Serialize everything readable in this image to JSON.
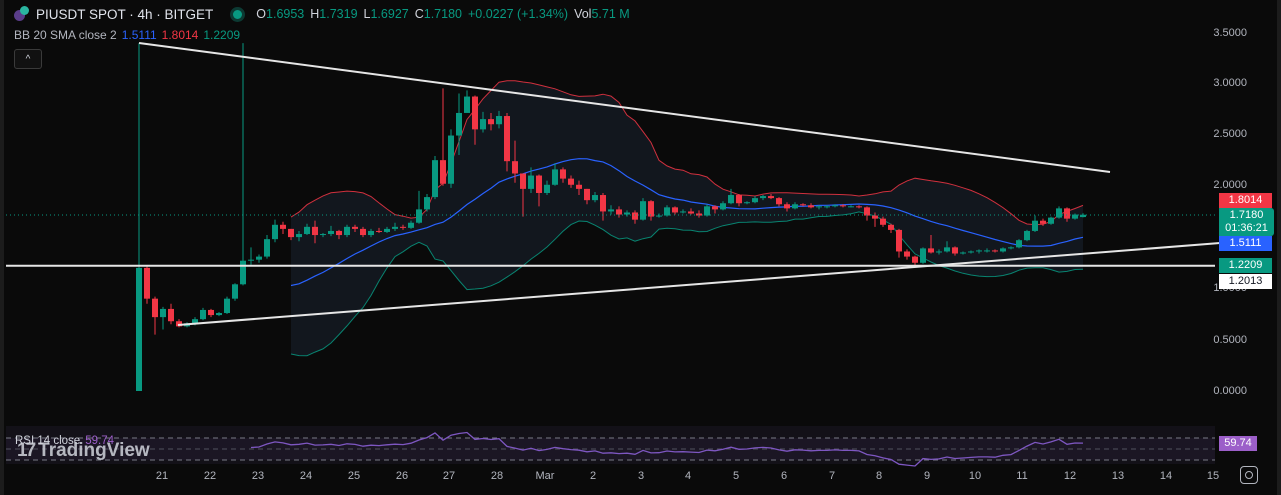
{
  "header": {
    "symbol": "PIUSDT SPOT",
    "interval": "4h",
    "exchange": "BITGET",
    "title": "PIUSDT SPOT · 4h · BITGET",
    "ohlc": {
      "o_label": "O",
      "o": "1.6953",
      "h_label": "H",
      "h": "1.7319",
      "l_label": "L",
      "l": "1.6927",
      "c_label": "C",
      "c": "1.7180",
      "change": "+0.0227 (+1.34%)",
      "vol_label": "Vol",
      "vol": "5.71 M"
    }
  },
  "indicators": {
    "bb": {
      "label": "BB 20 SMA close 2",
      "basis": "1.5111",
      "upper": "1.8014",
      "lower": "1.2209"
    },
    "rsi": {
      "label": "RSI 14 close",
      "value": "59.74"
    }
  },
  "watermark": {
    "mark": "17",
    "word": "TradingView"
  },
  "collapse_icon": "^",
  "price_axis": {
    "ticks": [
      "3.5000",
      "3.0000",
      "2.5000",
      "2.0000",
      "1.0000",
      "0.5000",
      "0.0000"
    ],
    "tags": {
      "bb_upper": "1.8014",
      "last_price": "1.7180",
      "countdown": "01:36:21",
      "bb_basis": "1.5111",
      "bb_lower": "1.2209",
      "horizontal_line": "1.2013",
      "rsi": "59.74"
    }
  },
  "time_axis": {
    "labels": [
      "21",
      "22",
      "23",
      "24",
      "25",
      "26",
      "27",
      "28",
      "Mar",
      "2",
      "3",
      "4",
      "5",
      "6",
      "7",
      "8",
      "9",
      "10",
      "11",
      "12",
      "13",
      "14",
      "15"
    ]
  },
  "colors": {
    "up": "#089981",
    "down": "#f23645",
    "bb_basis": "#2962ff",
    "bb_upper": "#f23645",
    "bb_lower": "#089981",
    "rsi": "#7e57c2",
    "rsi_tag": "#9c5fc9",
    "background": "#000000"
  },
  "chart_data": {
    "type": "candlestick",
    "title": "PIUSDT SPOT · 4h · BITGET",
    "x_labels": [
      "21",
      "22",
      "23",
      "24",
      "25",
      "26",
      "27",
      "28",
      "Mar",
      "2",
      "3",
      "4",
      "5",
      "6",
      "7",
      "8",
      "9",
      "10",
      "11",
      "12",
      "13",
      "14",
      "15"
    ],
    "ylim": [
      0,
      3.6
    ],
    "candles_ohlc": [
      [
        0.0,
        3.39,
        0.0,
        1.2
      ],
      [
        1.2,
        1.22,
        0.85,
        0.9
      ],
      [
        0.9,
        0.92,
        0.55,
        0.72
      ],
      [
        0.72,
        0.82,
        0.6,
        0.8
      ],
      [
        0.8,
        0.85,
        0.65,
        0.68
      ],
      [
        0.68,
        0.7,
        0.62,
        0.63
      ],
      [
        0.63,
        0.67,
        0.62,
        0.66
      ],
      [
        0.66,
        0.72,
        0.64,
        0.7
      ],
      [
        0.7,
        0.81,
        0.69,
        0.79
      ],
      [
        0.79,
        0.8,
        0.72,
        0.74
      ],
      [
        0.74,
        0.77,
        0.73,
        0.76
      ],
      [
        0.76,
        0.92,
        0.75,
        0.9
      ],
      [
        0.9,
        1.05,
        0.88,
        1.04
      ],
      [
        1.04,
        3.39,
        1.03,
        1.27
      ],
      [
        1.27,
        1.4,
        1.23,
        1.28
      ],
      [
        1.28,
        1.33,
        1.25,
        1.31
      ],
      [
        1.31,
        1.52,
        1.29,
        1.48
      ],
      [
        1.48,
        1.67,
        1.45,
        1.62
      ],
      [
        1.62,
        1.65,
        1.53,
        1.58
      ],
      [
        1.58,
        1.58,
        1.47,
        1.5
      ],
      [
        1.5,
        1.56,
        1.46,
        1.53
      ],
      [
        1.53,
        1.63,
        1.52,
        1.6
      ],
      [
        1.6,
        1.66,
        1.44,
        1.52
      ],
      [
        1.52,
        1.54,
        1.5,
        1.53
      ],
      [
        1.53,
        1.61,
        1.51,
        1.56
      ],
      [
        1.56,
        1.57,
        1.48,
        1.52
      ],
      [
        1.52,
        1.62,
        1.5,
        1.6
      ],
      [
        1.6,
        1.62,
        1.55,
        1.58
      ],
      [
        1.58,
        1.6,
        1.5,
        1.52
      ],
      [
        1.52,
        1.58,
        1.5,
        1.56
      ],
      [
        1.56,
        1.59,
        1.54,
        1.55
      ],
      [
        1.55,
        1.6,
        1.54,
        1.58
      ],
      [
        1.58,
        1.64,
        1.56,
        1.6
      ],
      [
        1.6,
        1.62,
        1.57,
        1.59
      ],
      [
        1.59,
        1.66,
        1.58,
        1.64
      ],
      [
        1.64,
        1.95,
        1.63,
        1.77
      ],
      [
        1.77,
        1.92,
        1.75,
        1.89
      ],
      [
        1.89,
        2.29,
        1.87,
        2.25
      ],
      [
        2.25,
        2.95,
        2.0,
        2.02
      ],
      [
        2.02,
        2.55,
        1.98,
        2.49
      ],
      [
        2.49,
        2.9,
        2.3,
        2.71
      ],
      [
        2.71,
        2.93,
        2.75,
        2.87
      ],
      [
        2.87,
        2.88,
        2.4,
        2.55
      ],
      [
        2.55,
        2.72,
        2.52,
        2.65
      ],
      [
        2.65,
        2.71,
        2.54,
        2.6
      ],
      [
        2.6,
        2.73,
        2.56,
        2.68
      ],
      [
        2.68,
        2.71,
        2.14,
        2.24
      ],
      [
        2.24,
        2.44,
        2.03,
        2.12
      ],
      [
        2.12,
        2.12,
        1.7,
        1.97
      ],
      [
        1.97,
        2.18,
        1.93,
        2.1
      ],
      [
        2.1,
        2.11,
        1.8,
        1.93
      ],
      [
        1.93,
        2.05,
        1.91,
        2.01
      ],
      [
        2.01,
        2.22,
        2.0,
        2.16
      ],
      [
        2.16,
        2.18,
        2.03,
        2.07
      ],
      [
        2.07,
        2.1,
        1.98,
        2.01
      ],
      [
        2.01,
        2.05,
        1.91,
        1.97
      ],
      [
        1.97,
        1.97,
        1.82,
        1.86
      ],
      [
        1.86,
        1.94,
        1.84,
        1.91
      ],
      [
        1.91,
        1.93,
        1.66,
        1.75
      ],
      [
        1.75,
        1.81,
        1.72,
        1.77
      ],
      [
        1.77,
        1.8,
        1.69,
        1.72
      ],
      [
        1.72,
        1.76,
        1.7,
        1.74
      ],
      [
        1.74,
        1.76,
        1.63,
        1.67
      ],
      [
        1.67,
        1.88,
        1.66,
        1.85
      ],
      [
        1.85,
        1.86,
        1.66,
        1.7
      ],
      [
        1.7,
        1.73,
        1.69,
        1.71
      ],
      [
        1.71,
        1.81,
        1.7,
        1.79
      ],
      [
        1.79,
        1.8,
        1.72,
        1.74
      ],
      [
        1.74,
        1.77,
        1.73,
        1.75
      ],
      [
        1.75,
        1.78,
        1.72,
        1.73
      ],
      [
        1.73,
        1.76,
        1.69,
        1.71
      ],
      [
        1.71,
        1.82,
        1.7,
        1.8
      ],
      [
        1.8,
        1.81,
        1.73,
        1.77
      ],
      [
        1.77,
        1.85,
        1.76,
        1.83
      ],
      [
        1.83,
        1.97,
        1.82,
        1.91
      ],
      [
        1.91,
        1.92,
        1.8,
        1.83
      ],
      [
        1.83,
        1.85,
        1.82,
        1.84
      ],
      [
        1.84,
        1.9,
        1.83,
        1.88
      ],
      [
        1.88,
        1.91,
        1.86,
        1.9
      ],
      [
        1.9,
        1.92,
        1.87,
        1.88
      ],
      [
        1.88,
        1.89,
        1.8,
        1.82
      ],
      [
        1.82,
        1.84,
        1.75,
        1.78
      ],
      [
        1.78,
        1.84,
        1.77,
        1.82
      ],
      [
        1.82,
        1.83,
        1.8,
        1.81
      ],
      [
        1.81,
        1.83,
        1.78,
        1.79
      ],
      [
        1.79,
        1.81,
        1.77,
        1.8
      ],
      [
        1.8,
        1.81,
        1.78,
        1.8
      ],
      [
        1.8,
        1.82,
        1.79,
        1.81
      ],
      [
        1.81,
        1.82,
        1.79,
        1.8
      ],
      [
        1.8,
        1.81,
        1.79,
        1.8
      ],
      [
        1.8,
        1.81,
        1.78,
        1.79
      ],
      [
        1.79,
        1.8,
        1.66,
        1.71
      ],
      [
        1.71,
        1.74,
        1.6,
        1.68
      ],
      [
        1.68,
        1.7,
        1.6,
        1.62
      ],
      [
        1.62,
        1.63,
        1.54,
        1.57
      ],
      [
        1.57,
        1.58,
        1.3,
        1.36
      ],
      [
        1.36,
        1.38,
        1.28,
        1.31
      ],
      [
        1.31,
        1.32,
        1.22,
        1.25
      ],
      [
        1.25,
        1.4,
        1.24,
        1.39
      ],
      [
        1.39,
        1.52,
        1.34,
        1.35
      ],
      [
        1.35,
        1.38,
        1.33,
        1.36
      ],
      [
        1.36,
        1.46,
        1.35,
        1.4
      ],
      [
        1.4,
        1.41,
        1.32,
        1.34
      ],
      [
        1.34,
        1.36,
        1.33,
        1.35
      ],
      [
        1.35,
        1.37,
        1.34,
        1.36
      ],
      [
        1.36,
        1.38,
        1.34,
        1.37
      ],
      [
        1.37,
        1.39,
        1.35,
        1.37
      ],
      [
        1.37,
        1.38,
        1.35,
        1.36
      ],
      [
        1.36,
        1.4,
        1.35,
        1.39
      ],
      [
        1.39,
        1.41,
        1.38,
        1.4
      ],
      [
        1.4,
        1.48,
        1.39,
        1.47
      ],
      [
        1.47,
        1.57,
        1.46,
        1.56
      ],
      [
        1.56,
        1.71,
        1.55,
        1.66
      ],
      [
        1.66,
        1.68,
        1.61,
        1.63
      ],
      [
        1.63,
        1.7,
        1.62,
        1.69
      ],
      [
        1.69,
        1.8,
        1.68,
        1.78
      ],
      [
        1.78,
        1.79,
        1.65,
        1.68
      ],
      [
        1.68,
        1.73,
        1.67,
        1.72
      ],
      [
        1.6953,
        1.7319,
        1.6927,
        1.718
      ]
    ],
    "bollinger": {
      "upper_label": "1.8014",
      "basis_label": "1.5111",
      "lower_label": "1.2209"
    },
    "trendlines": [
      {
        "name": "descending-resistance",
        "from": [
          "21",
          3.39
        ],
        "to": [
          "13",
          2.13
        ]
      },
      {
        "name": "ascending-support",
        "from": [
          "21.4",
          0.64
        ],
        "to": [
          "15",
          1.44
        ]
      },
      {
        "name": "horizontal-level",
        "price": 1.2013
      }
    ],
    "rsi": {
      "period": 14,
      "value": 59.74,
      "bands": [
        70,
        50,
        30
      ]
    }
  }
}
